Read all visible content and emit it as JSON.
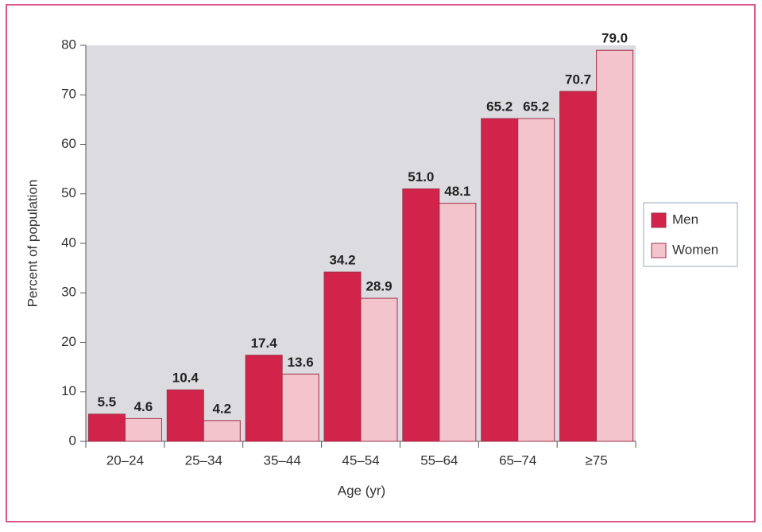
{
  "chart_data": {
    "type": "bar",
    "categories": [
      "20–24",
      "25–34",
      "35–44",
      "45–54",
      "55–64",
      "65–74",
      "≥75"
    ],
    "series": [
      {
        "name": "Men",
        "color": "#d2234b",
        "values": [
          5.5,
          10.4,
          17.4,
          34.2,
          51.0,
          65.2,
          70.7
        ],
        "value_labels": [
          "5.5",
          "10.4",
          "17.4",
          "34.2",
          "51.0",
          "65.2",
          "70.7"
        ]
      },
      {
        "name": "Women",
        "color": "#f4c4cd",
        "values": [
          4.6,
          4.2,
          13.6,
          28.9,
          48.1,
          65.2,
          79.0
        ],
        "value_labels": [
          "4.6",
          "4.2",
          "13.6",
          "28.9",
          "48.1",
          "65.2",
          "79.0"
        ]
      }
    ],
    "xlabel": "Age (yr)",
    "ylabel": "Percent of population",
    "ylim": [
      0,
      80
    ],
    "yticks": [
      0,
      10,
      20,
      30,
      40,
      50,
      60,
      70,
      80
    ],
    "legend": "right"
  }
}
